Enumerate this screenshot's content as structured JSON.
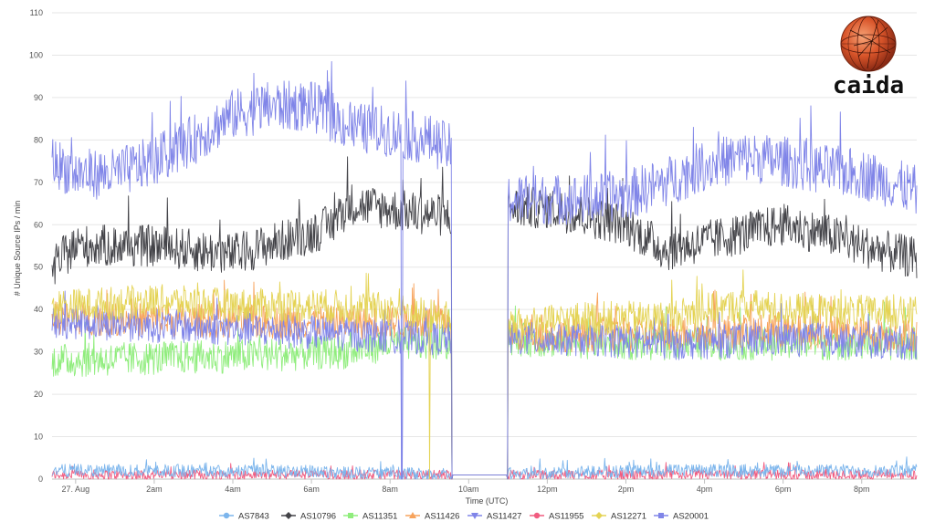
{
  "logo": {
    "text": "caida"
  },
  "chart_data": {
    "type": "line",
    "title": "",
    "xlabel": "Time (UTC)",
    "ylabel": "# Unique Source IPs / min",
    "ylim": [
      0,
      110
    ],
    "y_ticks": [
      0,
      10,
      20,
      30,
      40,
      50,
      60,
      70,
      80,
      90,
      100,
      110
    ],
    "x_range_hours": [
      0,
      21.4
    ],
    "x_ticks": [
      {
        "label": "27. Aug",
        "hour": 0
      },
      {
        "label": "2am",
        "hour": 2
      },
      {
        "label": "4am",
        "hour": 4
      },
      {
        "label": "6am",
        "hour": 6
      },
      {
        "label": "8am",
        "hour": 8
      },
      {
        "label": "10am",
        "hour": 10
      },
      {
        "label": "12pm",
        "hour": 12
      },
      {
        "label": "2pm",
        "hour": 14
      },
      {
        "label": "4pm",
        "hour": 16
      },
      {
        "label": "6pm",
        "hour": 18
      },
      {
        "label": "8pm",
        "hour": 20
      }
    ],
    "grid": "horizontal",
    "legend_position": "bottom",
    "outage_hours": [
      9.57,
      10.98
    ],
    "series": [
      {
        "name": "AS7843",
        "color": "#7cb5ec",
        "marker": "circle",
        "baseline": 2,
        "points": [
          [
            -0.6,
            2
          ],
          [
            5,
            2
          ],
          [
            10,
            1
          ],
          [
            15,
            2
          ],
          [
            21.4,
            2
          ]
        ]
      },
      {
        "name": "AS10796",
        "color": "#434348",
        "marker": "diamond",
        "baseline": 55,
        "points": [
          [
            -0.6,
            50
          ],
          [
            0,
            55
          ],
          [
            2,
            55
          ],
          [
            4,
            53
          ],
          [
            6,
            58
          ],
          [
            6.5,
            60
          ],
          [
            7,
            65
          ],
          [
            8.5,
            63
          ],
          [
            9.5,
            62
          ],
          [
            11,
            64
          ],
          [
            12,
            64
          ],
          [
            14,
            60
          ],
          [
            15,
            54
          ],
          [
            16,
            56
          ],
          [
            17,
            58
          ],
          [
            18,
            60
          ],
          [
            19,
            58
          ],
          [
            20,
            55
          ],
          [
            21.4,
            52
          ]
        ]
      },
      {
        "name": "AS11351",
        "color": "#90ed7d",
        "marker": "square",
        "baseline": 29,
        "points": [
          [
            -0.6,
            28
          ],
          [
            0,
            28
          ],
          [
            4,
            29
          ],
          [
            7,
            30
          ],
          [
            8,
            32
          ],
          [
            9.5,
            32
          ],
          [
            11,
            33
          ],
          [
            14,
            32
          ],
          [
            17,
            32
          ],
          [
            21.4,
            32
          ]
        ]
      },
      {
        "name": "AS11426",
        "color": "#f7a35c",
        "marker": "triangle",
        "baseline": 38,
        "points": [
          [
            -0.6,
            38
          ],
          [
            0,
            38
          ],
          [
            5,
            37
          ],
          [
            9.5,
            37
          ],
          [
            11,
            34
          ],
          [
            14,
            34
          ],
          [
            17,
            35
          ],
          [
            21.4,
            34
          ]
        ]
      },
      {
        "name": "AS11427",
        "color": "#8085e9",
        "marker": "triangle-down",
        "baseline": 36,
        "points": [
          [
            -0.6,
            37
          ],
          [
            0,
            37
          ],
          [
            5,
            35
          ],
          [
            9.5,
            33
          ],
          [
            11,
            33
          ],
          [
            13,
            33
          ],
          [
            15,
            32
          ],
          [
            18,
            33
          ],
          [
            21.4,
            32
          ]
        ]
      },
      {
        "name": "AS11955",
        "color": "#f15c80",
        "marker": "circle",
        "baseline": 1,
        "points": [
          [
            -0.6,
            1
          ],
          [
            5,
            1
          ],
          [
            10,
            1
          ],
          [
            15,
            1
          ],
          [
            21.4,
            1
          ]
        ]
      },
      {
        "name": "AS12271",
        "color": "#e4d354",
        "marker": "diamond",
        "baseline": 40,
        "points": [
          [
            -0.6,
            41
          ],
          [
            0,
            41
          ],
          [
            2,
            42
          ],
          [
            4,
            41
          ],
          [
            6,
            41
          ],
          [
            8,
            40
          ],
          [
            9.5,
            38
          ],
          [
            11,
            36
          ],
          [
            13,
            38
          ],
          [
            15,
            38
          ],
          [
            16,
            40
          ],
          [
            17,
            41
          ],
          [
            18,
            40
          ],
          [
            21.4,
            39
          ]
        ]
      },
      {
        "name": "AS20001",
        "color": "#8085e8",
        "marker": "square",
        "baseline": 75,
        "points": [
          [
            -0.6,
            75
          ],
          [
            0,
            72
          ],
          [
            1,
            72
          ],
          [
            2,
            75
          ],
          [
            3,
            80
          ],
          [
            4,
            86
          ],
          [
            5,
            88
          ],
          [
            6,
            88
          ],
          [
            7,
            83
          ],
          [
            8,
            82
          ],
          [
            9,
            80
          ],
          [
            9.5,
            78
          ],
          [
            11,
            66
          ],
          [
            12,
            66
          ],
          [
            13,
            66
          ],
          [
            14,
            67
          ],
          [
            15,
            70
          ],
          [
            16,
            74
          ],
          [
            17,
            76
          ],
          [
            18,
            75
          ],
          [
            19,
            73
          ],
          [
            20,
            72
          ],
          [
            21.4,
            68
          ]
        ]
      }
    ]
  }
}
